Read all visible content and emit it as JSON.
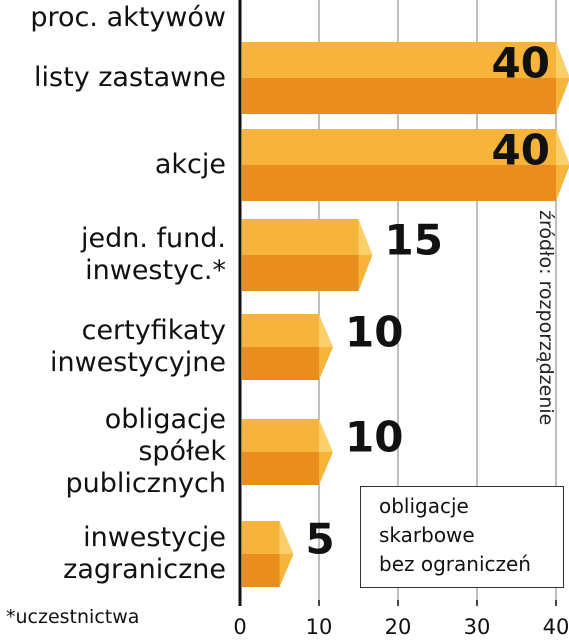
{
  "chart_data": {
    "type": "bar",
    "unit_label": "proc. aktywów",
    "categories": [
      "listy zastawne",
      "akcje",
      "jedn. fund.\ninwestyc.*",
      "certyfikaty\ninwestycyjne",
      "obligacje\nspółek\npublicznych",
      "inwestycje\nzagraniczne"
    ],
    "values": [
      40,
      40,
      15,
      10,
      10,
      5
    ],
    "colors": [
      "#f7b43a",
      "#e88d1e"
    ],
    "xlim": [
      0,
      40
    ],
    "xticks": [
      0,
      10,
      20,
      30,
      40
    ],
    "grid": true,
    "footnote": "*uczestnictwa",
    "source": "źródło: rozporządzenie",
    "annotation": "obligacje\nskarbowe\nbez ograniczeń"
  }
}
